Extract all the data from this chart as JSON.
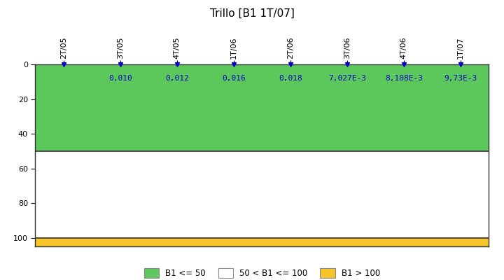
{
  "title": "Trillo [B1 1T/07]",
  "x_labels": [
    "2T/05",
    "3T/05",
    "4T/05",
    "1T/06",
    "2T/06",
    "3T/06",
    "4T/06",
    "1T/07"
  ],
  "data_labels": [
    "0,010",
    "0,012",
    "0,016",
    "0,018",
    "7,027E-3",
    "8,108E-3",
    "9,73E-3"
  ],
  "ylim_min": 0,
  "ylim_max": 105,
  "yticks": [
    0,
    20,
    40,
    60,
    80,
    100
  ],
  "green_color": "#5CC85C",
  "white_color": "#FFFFFF",
  "yellow_color": "#F5C52A",
  "data_color": "#0000CC",
  "border_color": "#333333",
  "background_color": "#FFFFFF",
  "legend_labels": [
    "B1 <= 50",
    "50 < B1 <= 100",
    "B1 > 100"
  ],
  "title_fontsize": 11,
  "tick_fontsize": 8,
  "label_fontsize": 8
}
